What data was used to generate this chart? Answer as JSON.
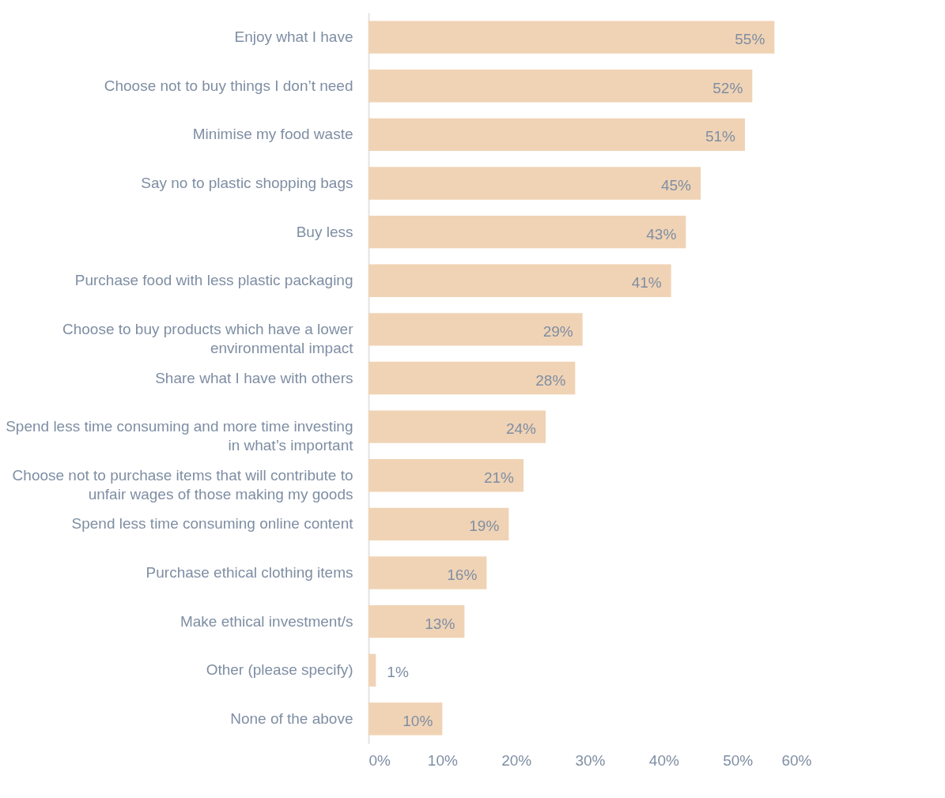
{
  "chart_data": {
    "type": "bar",
    "orientation": "horizontal",
    "categories": [
      "Enjoy what I have",
      "Choose not to buy things I don’t need",
      "Minimise my food waste",
      "Say no to plastic shopping bags",
      "Buy less",
      "Purchase food with less plastic packaging",
      "Choose to buy products which have a lower environmental impact",
      "Share what I have with others",
      "Spend less time consuming and more time investing in what’s important",
      "Choose not to purchase items that will contribute to unfair wages of those making my goods",
      "Spend less time consuming online content",
      "Purchase ethical clothing items",
      "Make ethical investment/s",
      "Other (please specify)",
      "None of the above"
    ],
    "values": [
      55,
      52,
      51,
      45,
      43,
      41,
      29,
      28,
      24,
      21,
      19,
      16,
      13,
      1,
      10
    ],
    "value_labels": [
      "55%",
      "52%",
      "51%",
      "45%",
      "43%",
      "41%",
      "29%",
      "28%",
      "24%",
      "21%",
      "19%",
      "16%",
      "13%",
      "1%",
      "10%"
    ],
    "color": "#f0d3b5",
    "xlim": [
      0,
      60
    ],
    "xticks": [
      {
        "value": 0,
        "label": "0%"
      },
      {
        "value": 10,
        "label": "10%"
      },
      {
        "value": 20,
        "label": "20%"
      },
      {
        "value": 30,
        "label": "30%"
      },
      {
        "value": 40,
        "label": "40%"
      },
      {
        "value": 50,
        "label": "50%"
      },
      {
        "value": 60,
        "label": "60%"
      }
    ],
    "grid": false
  }
}
